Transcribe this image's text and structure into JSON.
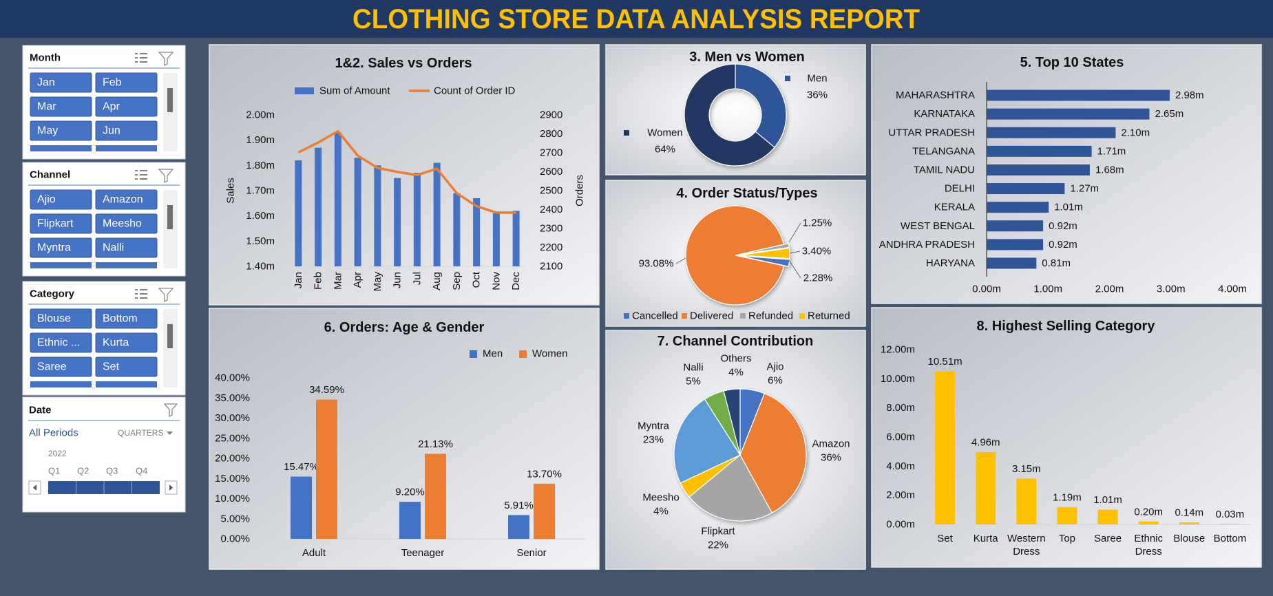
{
  "header": {
    "title": "CLOTHING STORE DATA ANALYSIS REPORT"
  },
  "slicers": [
    {
      "title": "Month",
      "items": [
        "Jan",
        "Feb",
        "Mar",
        "Apr",
        "May",
        "Jun"
      ]
    },
    {
      "title": "Channel",
      "items": [
        "Ajio",
        "Amazon",
        "Flipkart",
        "Meesho",
        "Myntra",
        "Nalli"
      ]
    },
    {
      "title": "Category",
      "items": [
        "Blouse",
        "Bottom",
        "Ethnic ...",
        "Kurta",
        "Saree",
        "Set"
      ]
    }
  ],
  "date_slicer": {
    "title": "Date",
    "selection": "All Periods",
    "level": "QUARTERS",
    "year": "2022",
    "periods": [
      "Q1",
      "Q2",
      "Q3",
      "Q4"
    ]
  },
  "chart_data": [
    {
      "type": "combo",
      "title": "1&2. Sales vs Orders",
      "categories": [
        "Jan",
        "Feb",
        "Mar",
        "Apr",
        "May",
        "Jun",
        "Jul",
        "Aug",
        "Sep",
        "Oct",
        "Nov",
        "Dec"
      ],
      "series": [
        {
          "name": "Sum of Amount",
          "type": "bar",
          "color": "#4472c4",
          "values": [
            1.82,
            1.87,
            1.93,
            1.83,
            1.8,
            1.75,
            1.77,
            1.81,
            1.69,
            1.67,
            1.61,
            1.62
          ]
        },
        {
          "name": "Count of Order ID",
          "type": "line",
          "axis": "y2",
          "color": "#ed7d31",
          "values": [
            2702,
            2754,
            2814,
            2685,
            2620,
            2599,
            2582,
            2616,
            2487,
            2418,
            2384,
            2384
          ]
        }
      ],
      "y_label": "Sales",
      "y2_label": "Orders",
      "ylim": [
        1.4,
        2.0
      ],
      "yticks": [
        {
          "value": 1.4,
          "label": "1.40m"
        },
        {
          "value": 1.5,
          "label": "1.50m"
        },
        {
          "value": 1.6,
          "label": "1.60m"
        },
        {
          "value": 1.7,
          "label": "1.70m"
        },
        {
          "value": 1.8,
          "label": "1.80m"
        },
        {
          "value": 1.9,
          "label": "1.90m"
        },
        {
          "value": 2.0,
          "label": "2.00m"
        }
      ],
      "y2lim": [
        2100,
        2900
      ],
      "y2ticks": [
        2100,
        2200,
        2300,
        2400,
        2500,
        2600,
        2700,
        2800,
        2900
      ],
      "legend": "top"
    },
    {
      "type": "donut",
      "title": "3. Men vs Women",
      "categories": [
        "Men",
        "Women"
      ],
      "values": [
        36,
        64
      ],
      "value_labels": [
        "36%",
        "64%"
      ],
      "colors": [
        "#2f5597",
        "#203864"
      ]
    },
    {
      "type": "pie",
      "title": "4. Order Status/Types",
      "categories": [
        "Cancelled",
        "Delivered",
        "Refunded",
        "Returned"
      ],
      "values": [
        2.28,
        93.08,
        1.25,
        3.4
      ],
      "value_labels": [
        "2.28%",
        "93.08%",
        "1.25%",
        "3.40%"
      ],
      "colors": [
        "#4472c4",
        "#ed7d31",
        "#a5a5a5",
        "#ffc000"
      ],
      "legend": "bottom"
    },
    {
      "type": "bar",
      "orientation": "horizontal",
      "title": "5. Top 10 States",
      "categories": [
        "MAHARASHTRA",
        "KARNATAKA",
        "UTTAR PRADESH",
        "TELANGANA",
        "TAMIL NADU",
        "DELHI",
        "KERALA",
        "WEST BENGAL",
        "ANDHRA PRADESH",
        "HARYANA"
      ],
      "values": [
        2.98,
        2.65,
        2.1,
        1.71,
        1.68,
        1.27,
        1.01,
        0.92,
        0.92,
        0.81
      ],
      "value_labels": [
        "2.98m",
        "2.65m",
        "2.10m",
        "1.71m",
        "1.68m",
        "1.27m",
        "1.01m",
        "0.92m",
        "0.92m",
        "0.81m"
      ],
      "color": "#2f5597",
      "xlim": [
        0,
        4
      ],
      "xticks": [
        {
          "value": 0,
          "label": "0.00m"
        },
        {
          "value": 1,
          "label": "1.00m"
        },
        {
          "value": 2,
          "label": "2.00m"
        },
        {
          "value": 3,
          "label": "3.00m"
        },
        {
          "value": 4,
          "label": "4.00m"
        }
      ]
    },
    {
      "type": "bar",
      "title": "6. Orders: Age & Gender",
      "categories": [
        "Adult",
        "Teenager",
        "Senior"
      ],
      "series": [
        {
          "name": "Men",
          "color": "#4472c4",
          "values": [
            15.47,
            9.2,
            5.91
          ],
          "value_labels": [
            "15.47%",
            "9.20%",
            "5.91%"
          ]
        },
        {
          "name": "Women",
          "color": "#ed7d31",
          "values": [
            34.59,
            21.13,
            13.7
          ],
          "value_labels": [
            "34.59%",
            "21.13%",
            "13.70%"
          ]
        }
      ],
      "ylim": [
        0,
        40
      ],
      "yticks": [
        {
          "value": 0,
          "label": "0.00%"
        },
        {
          "value": 5,
          "label": "5.00%"
        },
        {
          "value": 10,
          "label": "10.00%"
        },
        {
          "value": 15,
          "label": "15.00%"
        },
        {
          "value": 20,
          "label": "20.00%"
        },
        {
          "value": 25,
          "label": "25.00%"
        },
        {
          "value": 30,
          "label": "30.00%"
        },
        {
          "value": 35,
          "label": "35.00%"
        },
        {
          "value": 40,
          "label": "40.00%"
        }
      ],
      "legend": "top-right"
    },
    {
      "type": "pie",
      "title": "7. Channel Contribution",
      "categories": [
        "Ajio",
        "Amazon",
        "Flipkart",
        "Meesho",
        "Myntra",
        "Nalli",
        "Others"
      ],
      "values": [
        6,
        36,
        22,
        4,
        23,
        5,
        4
      ],
      "value_labels": [
        "6%",
        "36%",
        "22%",
        "4%",
        "23%",
        "5%",
        "4%"
      ],
      "colors": [
        "#4472c4",
        "#ed7d31",
        "#a5a5a5",
        "#ffc000",
        "#5b9bd5",
        "#70ad47",
        "#264478"
      ]
    },
    {
      "type": "bar",
      "title": "8. Highest Selling Category",
      "categories": [
        "Set",
        "Kurta",
        "Western Dress",
        "Top",
        "Saree",
        "Ethnic Dress",
        "Blouse",
        "Bottom"
      ],
      "values": [
        10.51,
        4.96,
        3.15,
        1.19,
        1.01,
        0.2,
        0.14,
        0.03
      ],
      "value_labels": [
        "10.51m",
        "4.96m",
        "3.15m",
        "1.19m",
        "1.01m",
        "0.20m",
        "0.14m",
        "0.03m"
      ],
      "color": "#ffc000",
      "ylim": [
        0,
        12
      ],
      "yticks": [
        {
          "value": 0,
          "label": "0.00m"
        },
        {
          "value": 2,
          "label": "2.00m"
        },
        {
          "value": 4,
          "label": "4.00m"
        },
        {
          "value": 6,
          "label": "6.00m"
        },
        {
          "value": 8,
          "label": "8.00m"
        },
        {
          "value": 10,
          "label": "10.00m"
        },
        {
          "value": 12,
          "label": "12.00m"
        }
      ]
    }
  ]
}
